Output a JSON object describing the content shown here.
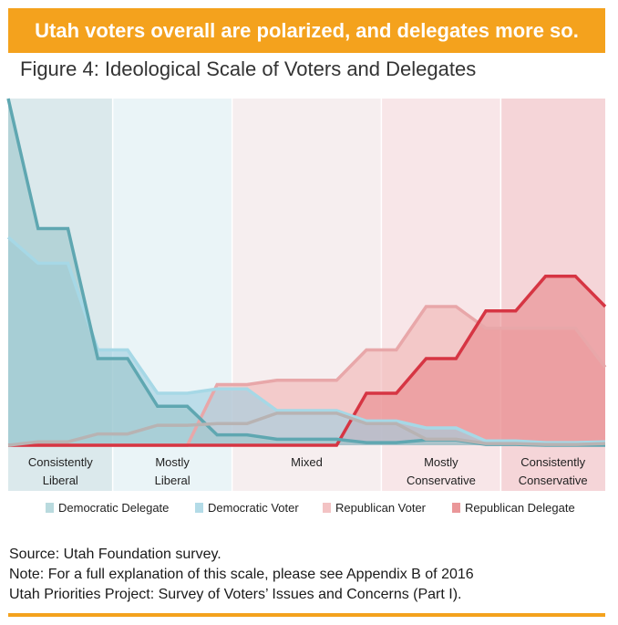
{
  "banner": {
    "text": "Utah voters overall are polarized, and delegates more so."
  },
  "figure": {
    "title": "Figure 4: Ideological Scale of Voters and Delegates"
  },
  "chart_data": {
    "type": "area",
    "title": "Figure 4: Ideological Scale of Voters and Delegates",
    "xlabel": "",
    "ylabel": "",
    "ylim": [
      0,
      40
    ],
    "x": [
      0,
      1,
      2,
      3,
      4,
      5,
      6,
      7,
      8,
      9,
      10,
      11,
      12,
      13,
      14,
      15,
      16,
      17,
      18,
      19,
      20
    ],
    "x_range": [
      0,
      20
    ],
    "categories": [
      {
        "label": [
          "Consistently",
          "Liberal"
        ],
        "from": 0,
        "to": 3.5,
        "color": "#dbe9ec"
      },
      {
        "label": [
          "Mostly",
          "Liberal"
        ],
        "from": 3.5,
        "to": 7.5,
        "color": "#eaf4f7"
      },
      {
        "label": [
          "Mixed"
        ],
        "from": 7.5,
        "to": 12.5,
        "color": "#f6eeef"
      },
      {
        "label": [
          "Mostly",
          "Conservative"
        ],
        "from": 12.5,
        "to": 16.5,
        "color": "#f8e6e8"
      },
      {
        "label": [
          "Consistently",
          "Conservative"
        ],
        "from": 16.5,
        "to": 20,
        "color": "#f5d5d8"
      }
    ],
    "series": [
      {
        "name": "Republican Voter",
        "fill": "#f1b4b4",
        "stroke": "#e8a7a9",
        "values": [
          0,
          0,
          0,
          0,
          0,
          0,
          0,
          7,
          7,
          7.5,
          7.5,
          7.5,
          11,
          11,
          16,
          16,
          13.5,
          13.5,
          13.5,
          13.5,
          9
        ]
      },
      {
        "name": "Republican Delegate",
        "fill": "#e98a8e",
        "stroke": "#d63543",
        "values": [
          0,
          0,
          0,
          0,
          0,
          0,
          0,
          0,
          0,
          0,
          0,
          0,
          6,
          6,
          10,
          10,
          15.5,
          15.5,
          19.5,
          19.5,
          16
        ]
      },
      {
        "name": "Democratic Voter",
        "fill": "#9fcfe0",
        "stroke": "#a6d8e6",
        "values": [
          24,
          21,
          21,
          11,
          11,
          6,
          6,
          6.5,
          6.5,
          4,
          4,
          4,
          2.8,
          2.8,
          2,
          2,
          0.5,
          0.5,
          0.3,
          0.3,
          0.4
        ]
      },
      {
        "name": "Democratic Delegate",
        "fill": "#9ec7cc",
        "stroke": "#5fa7b1",
        "values": [
          40,
          25,
          25,
          10,
          10,
          4.5,
          4.5,
          1.2,
          1.2,
          0.7,
          0.7,
          0.7,
          0.3,
          0.3,
          0.6,
          0.6,
          0.1,
          0.1,
          0,
          0,
          0
        ]
      },
      {
        "name": "Gray Baseline",
        "fill": "none",
        "stroke": "#b8b3b3",
        "values": [
          0,
          0.4,
          0.4,
          1.3,
          1.3,
          2.3,
          2.3,
          2.5,
          2.5,
          3.7,
          3.7,
          3.7,
          2.5,
          2.5,
          0.7,
          0.7,
          0.2,
          0.2,
          0.1,
          0.1,
          0.2
        ]
      }
    ],
    "legend": [
      {
        "name": "Democratic Delegate",
        "swatch": "#b9dade"
      },
      {
        "name": "Democratic Voter",
        "swatch": "#b3dbe7"
      },
      {
        "name": "Republican Voter",
        "swatch": "#f3c3c4"
      },
      {
        "name": "Republican Delegate",
        "swatch": "#ea9799"
      }
    ],
    "legend_position": "bottom"
  },
  "source": {
    "line1": "Source:  Utah Foundation survey.",
    "line2": "Note: For a full explanation of this scale, please see Appendix B of 2016",
    "line3": "Utah Priorities Project: Survey of Voters’ Issues and Concerns (Part I)."
  }
}
